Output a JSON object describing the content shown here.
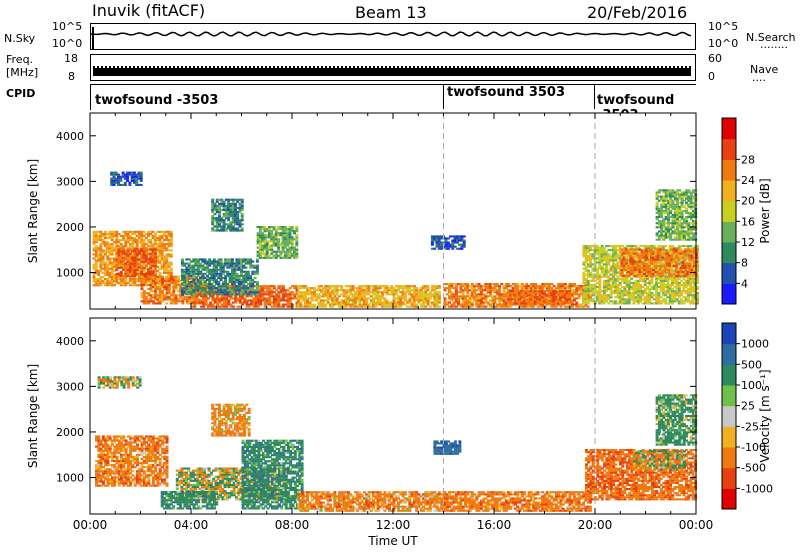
{
  "header": {
    "station": "Inuvik (fitACF)",
    "beam": "Beam 13",
    "date": "20/Feb/2016"
  },
  "noise_panel": {
    "left_label": "N.Sky",
    "left_ticks": [
      "10^5",
      "10^0"
    ],
    "right_ticks": [
      "10^5",
      "10^0"
    ],
    "right_label": "N.Search",
    "right_label_dots": "........"
  },
  "freq_panel": {
    "left_label_top": "Freq.",
    "left_label_bottom": "[MHz]",
    "left_ticks": [
      "18",
      "8"
    ],
    "right_ticks": [
      "60",
      "0"
    ],
    "right_label": "Nave",
    "right_label_dots": "...."
  },
  "cpid_panel": {
    "label": "CPID",
    "segments": [
      {
        "name": "twofsound -3503",
        "start": 0,
        "end": 14
      },
      {
        "name": "twofsound 3503",
        "start": 14,
        "end": 20
      },
      {
        "name": "twofsound -3503",
        "start": 20,
        "end": 24
      }
    ]
  },
  "colors": {
    "scatter_strong": "#e00000",
    "scatter_orange": "#f07a10",
    "ground_gray": "#c0c0c0",
    "green": "#2e8a3e",
    "blue": "#1a44b8"
  },
  "chart_data": [
    {
      "type": "heatmap",
      "panel": "power",
      "xlabel": "",
      "ylabel": "Slant Range [km]",
      "xlim": [
        0,
        24
      ],
      "ylim": [
        200,
        4500
      ],
      "yticks": [
        1000,
        2000,
        3000,
        4000
      ],
      "colorbar": {
        "label": "Power [dB]",
        "ticks": [
          4,
          8,
          12,
          16,
          20,
          24,
          28
        ],
        "colors": [
          "#1a1aff",
          "#234fb0",
          "#2e8a5e",
          "#6ab05a",
          "#c8d020",
          "#f0b020",
          "#f07a10",
          "#e84010",
          "#e00000"
        ]
      },
      "regions": [
        {
          "t0": 0.1,
          "t1": 3.2,
          "r0": 700,
          "r1": 1900,
          "level": 24
        },
        {
          "t0": 1.0,
          "t1": 2.6,
          "r0": 900,
          "r1": 1500,
          "level": 28
        },
        {
          "t0": 2.0,
          "t1": 4.6,
          "r0": 300,
          "r1": 900,
          "level": 26
        },
        {
          "t0": 4.0,
          "t1": 8.2,
          "r0": 230,
          "r1": 700,
          "level": 28
        },
        {
          "t0": 3.6,
          "t1": 6.6,
          "r0": 500,
          "r1": 1300,
          "level": 10
        },
        {
          "t0": 6.6,
          "t1": 8.2,
          "r0": 1300,
          "r1": 2000,
          "level": 14
        },
        {
          "t0": 4.8,
          "t1": 6.0,
          "r0": 1900,
          "r1": 2600,
          "level": 10
        },
        {
          "t0": 0.8,
          "t1": 2.0,
          "r0": 2900,
          "r1": 3200,
          "level": 6
        },
        {
          "t0": 8.2,
          "t1": 13.8,
          "r0": 230,
          "r1": 700,
          "level": 22
        },
        {
          "t0": 13.5,
          "t1": 14.8,
          "r0": 1500,
          "r1": 1800,
          "level": 6
        },
        {
          "t0": 14.0,
          "t1": 19.8,
          "r0": 230,
          "r1": 750,
          "level": 26
        },
        {
          "t0": 16.5,
          "t1": 19.0,
          "r0": 300,
          "r1": 600,
          "level": 28
        },
        {
          "t0": 19.5,
          "t1": 24.0,
          "r0": 300,
          "r1": 1600,
          "level": 18
        },
        {
          "t0": 21.0,
          "t1": 24.0,
          "r0": 900,
          "r1": 1500,
          "level": 26
        },
        {
          "t0": 22.4,
          "t1": 24.0,
          "r0": 1700,
          "r1": 2800,
          "level": 14
        }
      ]
    },
    {
      "type": "heatmap",
      "panel": "velocity",
      "xlabel": "Time UT",
      "ylabel": "Slant Range [km]",
      "xlim": [
        0,
        24
      ],
      "ylim": [
        200,
        4500
      ],
      "xticks": [
        "00:00",
        "04:00",
        "08:00",
        "12:00",
        "16:00",
        "20:00",
        "00:00"
      ],
      "yticks": [
        1000,
        2000,
        3000,
        4000
      ],
      "colorbar": {
        "label": "Velocity [m s⁻¹]",
        "ticks": [
          1000,
          500,
          100,
          25,
          -25,
          -100,
          -500,
          -1000
        ],
        "colors": [
          "#1a44b8",
          "#2e6e9e",
          "#2e8a5e",
          "#6fc04a",
          "#c8c8c8",
          "#f0b020",
          "#f07a10",
          "#e84010",
          "#e00000"
        ]
      },
      "regions": [
        {
          "t0": 0.2,
          "t1": 3.0,
          "r0": 800,
          "r1": 1900,
          "level": -300
        },
        {
          "t0": 0.3,
          "t1": 2.0,
          "r0": 2950,
          "r1": 3200,
          "level": 0
        },
        {
          "t0": 3.4,
          "t1": 7.8,
          "r0": 500,
          "r1": 1200,
          "level": 0
        },
        {
          "t0": 2.8,
          "t1": 5.0,
          "r0": 300,
          "r1": 700,
          "level": 300
        },
        {
          "t0": 6.0,
          "t1": 8.4,
          "r0": 300,
          "r1": 1800,
          "level": 300
        },
        {
          "t0": 4.8,
          "t1": 6.3,
          "r0": 1900,
          "r1": 2600,
          "level": -200
        },
        {
          "t0": 8.2,
          "t1": 14.0,
          "r0": 250,
          "r1": 700,
          "level": -250
        },
        {
          "t0": 13.6,
          "t1": 14.6,
          "r0": 1500,
          "r1": 1800,
          "level": 800
        },
        {
          "t0": 14.0,
          "t1": 19.8,
          "r0": 250,
          "r1": 700,
          "level": -300
        },
        {
          "t0": 19.6,
          "t1": 24.0,
          "r0": 500,
          "r1": 1600,
          "level": -400
        },
        {
          "t0": 21.5,
          "t1": 23.5,
          "r0": 1150,
          "r1": 1600,
          "level": 0
        },
        {
          "t0": 22.4,
          "t1": 24.0,
          "r0": 1700,
          "r1": 2800,
          "level": 200
        }
      ]
    }
  ]
}
